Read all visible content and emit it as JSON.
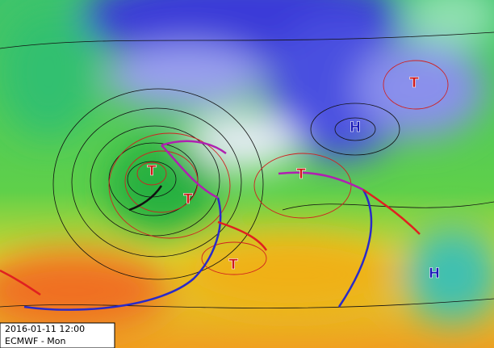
{
  "timestamp": "2016-01-11 12:00",
  "model": "ECMWF - Mon",
  "pressure_labels": [
    "T",
    "T",
    "T",
    "T",
    "T",
    "H",
    "H"
  ]
}
